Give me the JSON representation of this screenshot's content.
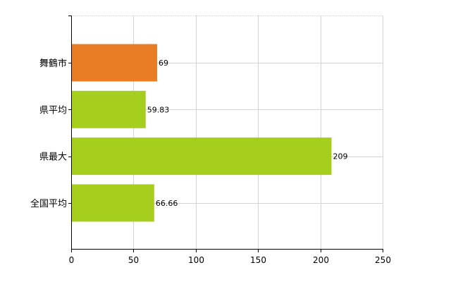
{
  "chart_data": {
    "type": "bar",
    "orientation": "horizontal",
    "title": "",
    "xlabel": "",
    "ylabel": "",
    "categories": [
      "舞鶴市",
      "県平均",
      "県最大",
      "全国平均"
    ],
    "values": [
      69,
      59.83,
      209,
      66.66
    ],
    "value_labels": [
      "69",
      "59.83",
      "209",
      "66.66"
    ],
    "bar_colors": [
      "#e87d26",
      "#a6ce1d",
      "#a6ce1d",
      "#a6ce1d"
    ],
    "xlim": [
      0,
      250
    ],
    "x_ticks": [
      0,
      50,
      100,
      150,
      200,
      250
    ],
    "x_tick_labels": [
      "0",
      "50",
      "100",
      "150",
      "200",
      "250"
    ],
    "grid": true,
    "legend": "none"
  }
}
